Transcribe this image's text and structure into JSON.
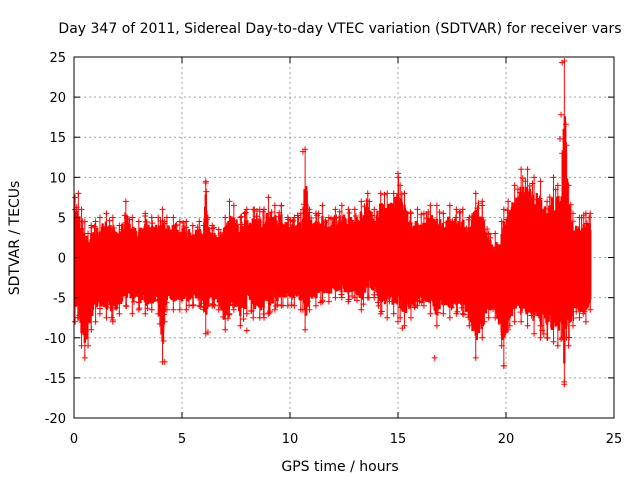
{
  "chart_data": {
    "type": "scatter",
    "title": "Day 347 of 2011, Sidereal Day-to-day VTEC variation (SDTVAR) for receiver vars",
    "xlabel": "GPS time / hours",
    "ylabel": "SDTVAR / TECUs",
    "xlim": [
      0,
      25
    ],
    "ylim": [
      -20,
      25
    ],
    "xticks": [
      0,
      5,
      10,
      15,
      20,
      25
    ],
    "yticks": [
      -20,
      -15,
      -10,
      -5,
      0,
      5,
      10,
      15,
      20,
      25
    ],
    "grid": true,
    "marker": "+",
    "color": "#ff0000",
    "series": [
      {
        "name": "vars",
        "x": [
          0.05,
          0.2,
          0.35,
          0.5,
          0.65,
          0.8,
          1.0,
          1.2,
          1.5,
          1.8,
          2.1,
          2.4,
          2.7,
          3.0,
          3.3,
          3.6,
          3.9,
          4.1,
          4.2,
          4.3,
          4.6,
          4.9,
          5.2,
          5.5,
          5.8,
          6.0,
          6.1,
          6.2,
          6.4,
          6.7,
          7.0,
          7.2,
          7.4,
          7.7,
          8.0,
          8.3,
          8.6,
          8.8,
          9.0,
          9.3,
          9.6,
          9.9,
          10.2,
          10.5,
          10.6,
          10.7,
          10.9,
          11.2,
          11.5,
          11.8,
          12.1,
          12.4,
          12.7,
          13.0,
          13.3,
          13.6,
          13.9,
          14.2,
          14.5,
          14.8,
          15.0,
          15.1,
          15.3,
          15.6,
          15.9,
          16.2,
          16.5,
          16.8,
          17.1,
          17.4,
          17.7,
          18.0,
          18.3,
          18.6,
          18.9,
          19.2,
          19.5,
          19.8,
          19.9,
          20.1,
          20.4,
          20.7,
          21.0,
          21.3,
          21.6,
          21.9,
          22.2,
          22.4,
          22.6,
          22.7,
          22.8,
          22.9,
          23.1,
          23.4,
          23.7,
          23.9
        ],
        "y_max": [
          7.5,
          8.0,
          6.0,
          4.5,
          3.0,
          4.0,
          4.5,
          5.0,
          5.5,
          5.0,
          4.0,
          7.0,
          5.0,
          4.5,
          5.5,
          5.0,
          5.0,
          6.0,
          4.5,
          5.0,
          5.0,
          4.5,
          4.5,
          4.0,
          4.5,
          4.0,
          9.5,
          5.0,
          4.0,
          3.5,
          5.0,
          7.0,
          6.5,
          5.0,
          6.0,
          6.0,
          6.0,
          6.0,
          7.5,
          6.5,
          6.5,
          5.0,
          5.0,
          5.5,
          6.0,
          13.5,
          6.0,
          5.5,
          6.5,
          5.0,
          6.0,
          6.5,
          6.0,
          6.0,
          7.0,
          8.0,
          6.0,
          8.0,
          8.0,
          8.0,
          10.5,
          9.0,
          8.0,
          5.5,
          6.0,
          5.5,
          6.5,
          6.5,
          5.5,
          6.5,
          6.0,
          6.0,
          5.0,
          8.0,
          7.0,
          3.0,
          3.0,
          4.5,
          6.0,
          7.0,
          9.0,
          11.0,
          11.0,
          10.0,
          9.5,
          7.0,
          10.0,
          9.0,
          13.0,
          24.5,
          14.0,
          9.0,
          5.5,
          5.0,
          5.5,
          5.5
        ],
        "y_min": [
          -8.0,
          -7.5,
          -11.0,
          -12.5,
          -11.0,
          -9.0,
          -8.0,
          -7.0,
          -7.5,
          -8.0,
          -7.0,
          -6.0,
          -7.0,
          -6.5,
          -7.0,
          -6.5,
          -7.0,
          -13.0,
          -8.0,
          -6.5,
          -6.5,
          -6.5,
          -6.5,
          -6.0,
          -6.0,
          -6.5,
          -9.5,
          -6.0,
          -6.0,
          -6.5,
          -9.0,
          -7.0,
          -6.5,
          -8.5,
          -7.0,
          -7.5,
          -7.5,
          -7.5,
          -7.0,
          -6.5,
          -6.0,
          -6.0,
          -6.0,
          -6.5,
          -6.5,
          -9.0,
          -6.5,
          -6.0,
          -5.5,
          -5.5,
          -5.0,
          -5.0,
          -5.5,
          -5.0,
          -6.5,
          -5.0,
          -5.0,
          -7.0,
          -7.5,
          -7.0,
          -8.0,
          -7.5,
          -8.5,
          -7.5,
          -6.0,
          -6.0,
          -7.0,
          -8.5,
          -7.0,
          -7.5,
          -7.0,
          -7.0,
          -8.5,
          -12.5,
          -10.0,
          -7.5,
          -7.5,
          -11.0,
          -13.5,
          -9.0,
          -8.0,
          -8.0,
          -8.5,
          -9.5,
          -10.0,
          -10.0,
          -10.5,
          -11.0,
          -10.0,
          -15.5,
          -10.0,
          -11.0,
          -8.5,
          -7.5,
          -8.0,
          -6.5
        ],
        "y_center": [
          -1.5,
          -1.0,
          -2.5,
          -3.0,
          -2.5,
          -1.5,
          -1.0,
          -1.0,
          -1.0,
          -1.5,
          -1.5,
          -1.0,
          -1.0,
          -1.0,
          -1.0,
          -1.0,
          -1.0,
          -1.5,
          -1.0,
          -0.5,
          -0.5,
          -0.5,
          -0.5,
          -0.5,
          -0.5,
          -1.0,
          -1.0,
          -0.5,
          -1.0,
          -1.5,
          -2.0,
          -1.0,
          -1.0,
          -1.5,
          -1.0,
          -1.0,
          -1.5,
          -1.5,
          -1.0,
          -0.5,
          -0.5,
          -0.5,
          -0.5,
          -0.5,
          -0.5,
          -0.5,
          -0.5,
          -0.5,
          0.0,
          -0.5,
          -0.5,
          0.0,
          0.0,
          0.0,
          0.0,
          0.5,
          0.5,
          0.5,
          0.5,
          0.5,
          1.0,
          0.5,
          0.0,
          -1.0,
          -1.0,
          -1.0,
          -1.0,
          -1.5,
          -1.0,
          -1.5,
          -1.5,
          -1.5,
          -2.0,
          -2.5,
          -2.0,
          -2.0,
          -2.5,
          -3.0,
          -3.5,
          -1.5,
          -1.0,
          0.0,
          0.0,
          -0.5,
          -1.0,
          -1.5,
          -1.5,
          -1.0,
          -0.5,
          -1.5,
          -1.5,
          -1.5,
          -1.5,
          -1.5,
          -1.5,
          -1.5
        ]
      }
    ],
    "outliers": [
      {
        "x": 22.6,
        "y": 24.3
      },
      {
        "x": 22.55,
        "y": 17.8
      },
      {
        "x": 22.5,
        "y": 14.8
      },
      {
        "x": 10.6,
        "y": 13.2
      },
      {
        "x": 4.2,
        "y": -13.0
      },
      {
        "x": 22.7,
        "y": -15.8
      },
      {
        "x": 19.9,
        "y": -13.5
      },
      {
        "x": 6.1,
        "y": 9.3
      },
      {
        "x": 16.7,
        "y": -12.5
      },
      {
        "x": 6.2,
        "y": -9.3
      },
      {
        "x": 8.0,
        "y": -9.1
      },
      {
        "x": 15.2,
        "y": -8.8
      }
    ]
  }
}
